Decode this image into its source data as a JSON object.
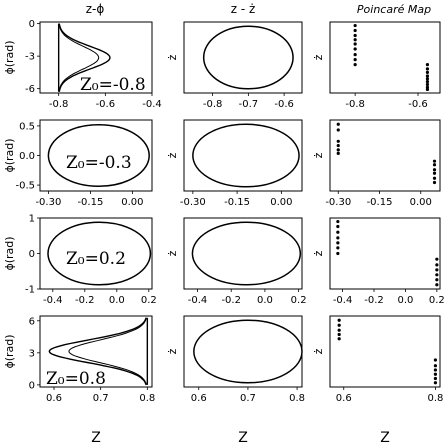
{
  "chart_data": {
    "type": "line",
    "columns": [
      {
        "title": "z-ϕ"
      },
      {
        "title": "z - ż"
      },
      {
        "title": "Poincaré  Map"
      }
    ],
    "axis_text": {
      "phi_ylabel": "ϕ(rad)",
      "zdot_ylabel": "ż",
      "xlabel": "Z"
    },
    "rows": [
      {
        "annotation": "Z₀=-0.8",
        "phi": {
          "xlim": [
            -0.88,
            -0.4
          ],
          "ylim": [
            -6.4,
            0.15
          ],
          "xticks": [
            "-0.8",
            "-0.6",
            "-0.4"
          ],
          "xtick_values": [
            -0.8,
            -0.6,
            -0.4
          ],
          "yticks": [
            "-6",
            "-3",
            "0"
          ],
          "ytick_values": [
            -6,
            -3,
            0
          ],
          "curve": {
            "z_min": -0.8,
            "z_max": -0.58,
            "phi_center": -3.14,
            "phi_half": 3.14
          }
        },
        "orbit": {
          "xlim": [
            -0.88,
            -0.55
          ],
          "xticks": [
            "-0.8",
            "-0.7",
            "-0.6"
          ],
          "xtick_values": [
            -0.8,
            -0.7,
            -0.6
          ],
          "ellipse": {
            "z_center": -0.7,
            "z_half": 0.125
          }
        },
        "poincare": {
          "xlim": [
            -0.88,
            -0.53
          ],
          "xticks": [
            "-0.8",
            "-0.6"
          ],
          "xtick_values": [
            -0.8,
            -0.6
          ],
          "points_z": [
            -0.8,
            -0.8,
            -0.8,
            -0.8,
            -0.8,
            -0.8,
            -0.8,
            -0.8,
            -0.8,
            -0.57,
            -0.57,
            -0.57,
            -0.57,
            -0.57,
            -0.57,
            -0.57,
            -0.57,
            -0.57
          ],
          "points_level": [
            0.05,
            0.12,
            0.19,
            0.25,
            0.31,
            0.38,
            0.46,
            0.53,
            0.6,
            0.6,
            0.66,
            0.71,
            0.76,
            0.8,
            0.84,
            0.88,
            0.92,
            0.95
          ]
        }
      },
      {
        "annotation": "Z₀=-0.3",
        "phi": {
          "xlim": [
            -0.33,
            0.07
          ],
          "ylim": [
            -0.6,
            0.6
          ],
          "xticks": [
            "-0.30",
            "-0.15",
            "0.00"
          ],
          "xtick_values": [
            -0.3,
            -0.15,
            0.0
          ],
          "yticks": [
            "-0.5",
            "0.0",
            "0.5"
          ],
          "ytick_values": [
            -0.5,
            0.0,
            0.5
          ],
          "ellipse": {
            "z_center": -0.12,
            "z_half": 0.18,
            "phi_half": 0.52
          }
        },
        "orbit": {
          "xlim": [
            -0.33,
            0.07
          ],
          "xticks": [
            "-0.30",
            "-0.15",
            "0.00"
          ],
          "xtick_values": [
            -0.3,
            -0.15,
            0.0
          ],
          "ellipse": {
            "z_center": -0.12,
            "z_half": 0.18
          }
        },
        "poincare": {
          "xlim": [
            -0.33,
            0.07
          ],
          "xticks": [
            "-0.30",
            "-0.15",
            "0.00"
          ],
          "xtick_values": [
            -0.3,
            -0.15,
            0.0
          ],
          "points_z": [
            -0.3,
            -0.3,
            -0.3,
            -0.3,
            -0.3,
            -0.3,
            0.05,
            0.05,
            0.05,
            0.05,
            0.05,
            0.05
          ],
          "points_level": [
            0.06,
            0.14,
            0.3,
            0.36,
            0.42,
            0.47,
            0.58,
            0.63,
            0.7,
            0.75,
            0.82,
            0.88
          ]
        }
      },
      {
        "annotation": "Z₀=0.2",
        "phi": {
          "xlim": [
            -0.48,
            0.22
          ],
          "ylim": [
            -1.0,
            1.0
          ],
          "xticks": [
            "-0.4",
            "-0.2",
            "0.0",
            "0.2"
          ],
          "xtick_values": [
            -0.4,
            -0.2,
            0.0,
            0.2
          ],
          "yticks": [
            "-1",
            "0",
            "1"
          ],
          "ytick_values": [
            -1,
            0,
            1
          ],
          "ellipse": {
            "z_center": -0.11,
            "z_half": 0.32,
            "phi_half": 0.88
          }
        },
        "orbit": {
          "xlim": [
            -0.48,
            0.22
          ],
          "xticks": [
            "-0.4",
            "-0.2",
            "0.0",
            "0.2"
          ],
          "xtick_values": [
            -0.4,
            -0.2,
            0.0,
            0.2
          ],
          "ellipse": {
            "z_center": -0.11,
            "z_half": 0.32
          }
        },
        "poincare": {
          "xlim": [
            -0.48,
            0.22
          ],
          "xticks": [
            "-0.4",
            "-0.2",
            "0.0",
            "0.2"
          ],
          "xtick_values": [
            -0.4,
            -0.2,
            0.0,
            0.2
          ],
          "points_z": [
            -0.43,
            -0.43,
            -0.43,
            -0.43,
            -0.43,
            -0.43,
            -0.43,
            0.2,
            0.2,
            0.2,
            0.2,
            0.2,
            0.2
          ],
          "points_level": [
            0.05,
            0.12,
            0.2,
            0.28,
            0.35,
            0.42,
            0.5,
            0.58,
            0.66,
            0.73,
            0.8,
            0.87,
            0.94
          ]
        }
      },
      {
        "annotation": "Z₀=0.8",
        "phi": {
          "xlim": [
            0.57,
            0.81
          ],
          "ylim": [
            -0.2,
            6.45
          ],
          "xticks": [
            "0.6",
            "0.7",
            "0.8"
          ],
          "xtick_values": [
            0.6,
            0.7,
            0.8
          ],
          "yticks": [
            "0",
            "3",
            "6"
          ],
          "ytick_values": [
            0,
            3,
            6
          ],
          "curve": {
            "z_min": 0.59,
            "z_max": 0.8,
            "phi_center": 3.14,
            "phi_half": 3.14
          }
        },
        "orbit": {
          "xlim": [
            0.57,
            0.81
          ],
          "xticks": [
            "0.6",
            "0.7",
            "0.8"
          ],
          "xtick_values": [
            0.6,
            0.7,
            0.8
          ],
          "ellipse": {
            "z_center": 0.7,
            "z_half": 0.11
          }
        },
        "poincare": {
          "xlim": [
            0.57,
            0.81
          ],
          "xticks": [
            "0.6",
            "0.8"
          ],
          "xtick_values": [
            0.6,
            0.8
          ],
          "points_z": [
            0.59,
            0.59,
            0.59,
            0.59,
            0.59,
            0.8,
            0.8,
            0.8,
            0.8,
            0.8,
            0.8
          ],
          "points_level": [
            0.06,
            0.13,
            0.2,
            0.26,
            0.32,
            0.62,
            0.7,
            0.76,
            0.82,
            0.88,
            0.94
          ]
        }
      }
    ]
  }
}
